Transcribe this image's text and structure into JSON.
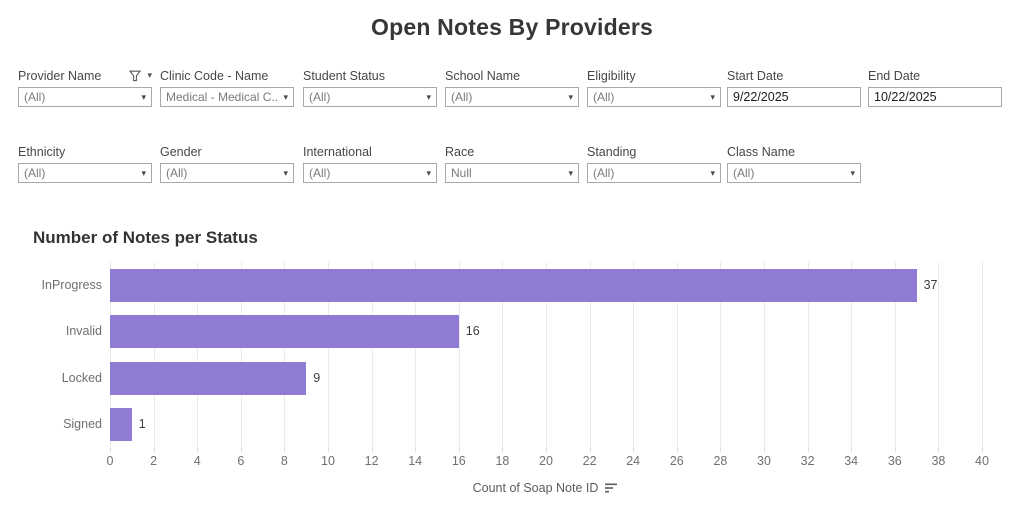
{
  "title": "Open Notes By Providers",
  "filters": {
    "row1": [
      {
        "id": "provider-name",
        "label": "Provider Name",
        "value": "(All)",
        "type": "dropdown",
        "has_funnel_icon": true,
        "has_menu_caret": true
      },
      {
        "id": "clinic-code-name",
        "label": "Clinic Code - Name",
        "value": "Medical - Medical C...",
        "type": "dropdown"
      },
      {
        "id": "student-status",
        "label": "Student Status",
        "value": "(All)",
        "type": "dropdown"
      },
      {
        "id": "school-name",
        "label": "School Name",
        "value": "(All)",
        "type": "dropdown"
      },
      {
        "id": "eligibility",
        "label": "Eligibility",
        "value": "(All)",
        "type": "dropdown"
      },
      {
        "id": "start-date",
        "label": "Start Date",
        "value": "9/22/2025",
        "type": "text"
      },
      {
        "id": "end-date",
        "label": "End Date",
        "value": "10/22/2025",
        "type": "text"
      }
    ],
    "row2": [
      {
        "id": "ethnicity",
        "label": "Ethnicity",
        "value": "(All)",
        "type": "dropdown"
      },
      {
        "id": "gender",
        "label": "Gender",
        "value": "(All)",
        "type": "dropdown"
      },
      {
        "id": "international",
        "label": "International",
        "value": "(All)",
        "type": "dropdown"
      },
      {
        "id": "race",
        "label": "Race",
        "value": "Null",
        "type": "dropdown"
      },
      {
        "id": "standing",
        "label": "Standing",
        "value": "(All)",
        "type": "dropdown"
      },
      {
        "id": "class-name",
        "label": "Class Name",
        "value": "(All)",
        "type": "dropdown"
      }
    ]
  },
  "chart_data": {
    "type": "bar",
    "orientation": "horizontal",
    "title": "Number of Notes per Status",
    "categories": [
      "InProgress",
      "Invalid",
      "Locked",
      "Signed"
    ],
    "values": [
      37,
      16,
      9,
      1
    ],
    "xlabel": "Count of Soap Note ID",
    "xlim": [
      0,
      40
    ],
    "xticks": [
      0,
      2,
      4,
      6,
      8,
      10,
      12,
      14,
      16,
      18,
      20,
      22,
      24,
      26,
      28,
      30,
      32,
      34,
      36,
      38,
      40
    ],
    "grid": true,
    "legend": "none",
    "sort_icon": "sort-descending",
    "bar_color": "#8F7BD3"
  },
  "colors": {
    "accent": "#8F7BD3",
    "border": "#a9a9a9",
    "gridline": "#ebebeb",
    "title_text": "#373737",
    "muted_text": "#707070"
  }
}
